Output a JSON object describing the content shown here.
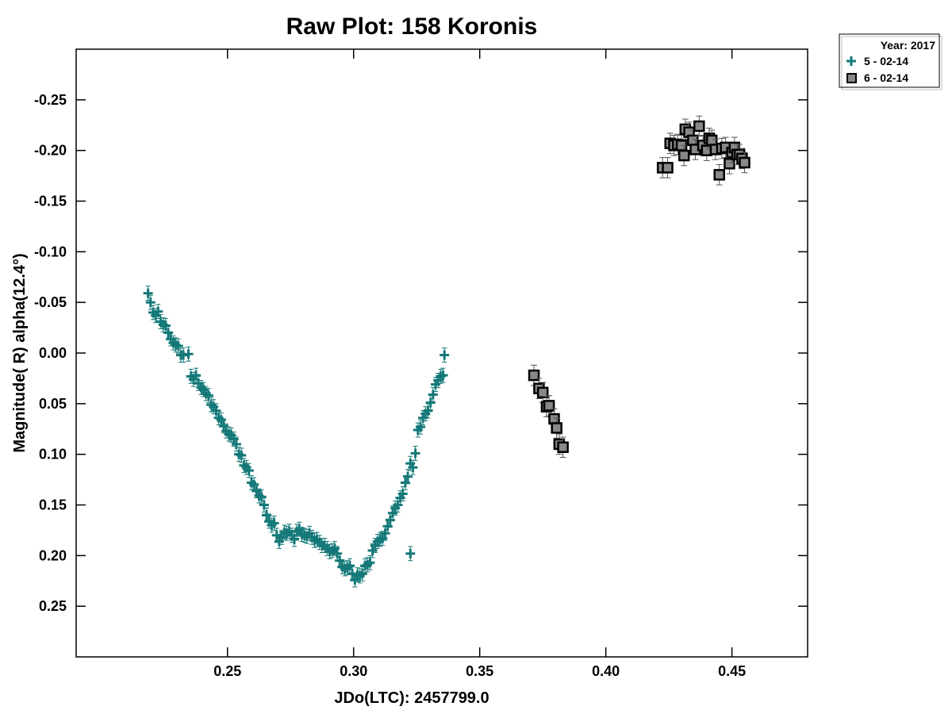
{
  "chart_data": {
    "type": "scatter",
    "title": "Raw Plot: 158 Koronis",
    "xlabel": "JDo(LTC): 2457799.0",
    "ylabel": "Magnitude( R) alpha(12.4°)",
    "xlim": [
      0.19,
      0.48
    ],
    "ylim": [
      0.3,
      -0.3
    ],
    "y_inverted": true,
    "grid": false,
    "legend_position": "top-right outside",
    "legend_title": "Year: 2017",
    "x_ticks": [
      {
        "value": 0.25,
        "label": "0.25"
      },
      {
        "value": 0.3,
        "label": "0.30"
      },
      {
        "value": 0.35,
        "label": "0.35"
      },
      {
        "value": 0.4,
        "label": "0.40"
      },
      {
        "value": 0.45,
        "label": "0.45"
      }
    ],
    "y_ticks": [
      {
        "value": -0.25,
        "label": "-0.25"
      },
      {
        "value": -0.2,
        "label": "-0.20"
      },
      {
        "value": -0.15,
        "label": "-0.15"
      },
      {
        "value": -0.1,
        "label": "-0.10"
      },
      {
        "value": -0.05,
        "label": "-0.05"
      },
      {
        "value": 0.0,
        "label": "0.00"
      },
      {
        "value": 0.05,
        "label": "0.05"
      },
      {
        "value": 0.1,
        "label": "0.10"
      },
      {
        "value": 0.15,
        "label": "0.15"
      },
      {
        "value": 0.2,
        "label": "0.20"
      },
      {
        "value": 0.25,
        "label": "0.25"
      }
    ],
    "series": [
      {
        "name": "5 - 02-14",
        "marker": "plus",
        "color": "#147878",
        "error": 0.007,
        "points": [
          [
            0.2185,
            -0.059
          ],
          [
            0.2195,
            -0.05
          ],
          [
            0.2205,
            -0.04
          ],
          [
            0.2215,
            -0.037
          ],
          [
            0.2225,
            -0.041
          ],
          [
            0.2235,
            -0.031
          ],
          [
            0.2245,
            -0.028
          ],
          [
            0.2255,
            -0.027
          ],
          [
            0.2265,
            -0.02
          ],
          [
            0.2275,
            -0.014
          ],
          [
            0.2285,
            -0.01
          ],
          [
            0.2295,
            -0.008
          ],
          [
            0.2305,
            -0.007
          ],
          [
            0.2315,
            0.002
          ],
          [
            0.2325,
            0.002
          ],
          [
            0.2345,
            0.001
          ],
          [
            0.2355,
            0.023
          ],
          [
            0.2365,
            0.026
          ],
          [
            0.2375,
            0.022
          ],
          [
            0.2385,
            0.03
          ],
          [
            0.2395,
            0.034
          ],
          [
            0.2405,
            0.036
          ],
          [
            0.2415,
            0.04
          ],
          [
            0.2425,
            0.042
          ],
          [
            0.2435,
            0.051
          ],
          [
            0.2445,
            0.053
          ],
          [
            0.2455,
            0.057
          ],
          [
            0.2465,
            0.064
          ],
          [
            0.2475,
            0.066
          ],
          [
            0.2485,
            0.072
          ],
          [
            0.2495,
            0.077
          ],
          [
            0.2505,
            0.08
          ],
          [
            0.2515,
            0.081
          ],
          [
            0.2525,
            0.085
          ],
          [
            0.2535,
            0.09
          ],
          [
            0.2545,
            0.1
          ],
          [
            0.2555,
            0.101
          ],
          [
            0.2565,
            0.111
          ],
          [
            0.2575,
            0.113
          ],
          [
            0.2585,
            0.116
          ],
          [
            0.2595,
            0.128
          ],
          [
            0.2605,
            0.13
          ],
          [
            0.2615,
            0.136
          ],
          [
            0.2625,
            0.141
          ],
          [
            0.2635,
            0.142
          ],
          [
            0.2645,
            0.15
          ],
          [
            0.2655,
            0.16
          ],
          [
            0.2665,
            0.166
          ],
          [
            0.2675,
            0.17
          ],
          [
            0.2685,
            0.168
          ],
          [
            0.2695,
            0.18
          ],
          [
            0.2705,
            0.186
          ],
          [
            0.2715,
            0.182
          ],
          [
            0.2725,
            0.177
          ],
          [
            0.2735,
            0.178
          ],
          [
            0.2745,
            0.176
          ],
          [
            0.2755,
            0.18
          ],
          [
            0.2765,
            0.184
          ],
          [
            0.2775,
            0.176
          ],
          [
            0.2785,
            0.174
          ],
          [
            0.2795,
            0.179
          ],
          [
            0.2805,
            0.18
          ],
          [
            0.2815,
            0.181
          ],
          [
            0.2825,
            0.178
          ],
          [
            0.2835,
            0.182
          ],
          [
            0.2845,
            0.185
          ],
          [
            0.2855,
            0.184
          ],
          [
            0.2865,
            0.187
          ],
          [
            0.2875,
            0.19
          ],
          [
            0.2885,
            0.19
          ],
          [
            0.2895,
            0.193
          ],
          [
            0.2905,
            0.196
          ],
          [
            0.2915,
            0.195
          ],
          [
            0.2925,
            0.193
          ],
          [
            0.2935,
            0.198
          ],
          [
            0.2945,
            0.205
          ],
          [
            0.2955,
            0.211
          ],
          [
            0.2965,
            0.213
          ],
          [
            0.2975,
            0.212
          ],
          [
            0.2985,
            0.21
          ],
          [
            0.2995,
            0.218
          ],
          [
            0.3005,
            0.224
          ],
          [
            0.3015,
            0.219
          ],
          [
            0.3025,
            0.22
          ],
          [
            0.3035,
            0.218
          ],
          [
            0.3045,
            0.21
          ],
          [
            0.3055,
            0.209
          ],
          [
            0.3065,
            0.207
          ],
          [
            0.3075,
            0.195
          ],
          [
            0.3085,
            0.19
          ],
          [
            0.3095,
            0.186
          ],
          [
            0.3105,
            0.184
          ],
          [
            0.3115,
            0.183
          ],
          [
            0.3125,
            0.178
          ],
          [
            0.3135,
            0.171
          ],
          [
            0.3145,
            0.165
          ],
          [
            0.3155,
            0.158
          ],
          [
            0.3165,
            0.153
          ],
          [
            0.3175,
            0.15
          ],
          [
            0.3185,
            0.143
          ],
          [
            0.3195,
            0.139
          ],
          [
            0.3205,
            0.128
          ],
          [
            0.3215,
            0.122
          ],
          [
            0.3225,
            0.109
          ],
          [
            0.3235,
            0.113
          ],
          [
            0.3245,
            0.099
          ],
          [
            0.3255,
            0.076
          ],
          [
            0.3265,
            0.073
          ],
          [
            0.3275,
            0.064
          ],
          [
            0.3285,
            0.06
          ],
          [
            0.3295,
            0.057
          ],
          [
            0.3305,
            0.049
          ],
          [
            0.3315,
            0.041
          ],
          [
            0.3325,
            0.031
          ],
          [
            0.3335,
            0.027
          ],
          [
            0.3345,
            0.023
          ],
          [
            0.3355,
            0.022
          ],
          [
            0.336,
            0.002
          ],
          [
            0.3225,
            0.198
          ],
          [
            0.2655,
            0.16
          ]
        ]
      },
      {
        "name": "6 - 02-14",
        "marker": "square",
        "color": "#888888",
        "error": 0.004,
        "points": [
          [
            0.3715,
            0.022
          ],
          [
            0.3735,
            0.035
          ],
          [
            0.375,
            0.039
          ],
          [
            0.3765,
            0.053
          ],
          [
            0.3775,
            0.052
          ],
          [
            0.3795,
            0.065
          ],
          [
            0.3805,
            0.074
          ],
          [
            0.3815,
            0.09
          ],
          [
            0.383,
            0.093
          ],
          [
            0.4225,
            -0.183
          ],
          [
            0.4245,
            -0.183
          ],
          [
            0.4255,
            -0.207
          ],
          [
            0.427,
            -0.205
          ],
          [
            0.4285,
            -0.206
          ],
          [
            0.43,
            -0.205
          ],
          [
            0.431,
            -0.195
          ],
          [
            0.4315,
            -0.221
          ],
          [
            0.433,
            -0.218
          ],
          [
            0.4345,
            -0.21
          ],
          [
            0.4355,
            -0.201
          ],
          [
            0.437,
            -0.224
          ],
          [
            0.4385,
            -0.205
          ],
          [
            0.44,
            -0.2
          ],
          [
            0.441,
            -0.212
          ],
          [
            0.442,
            -0.21
          ],
          [
            0.4435,
            -0.201
          ],
          [
            0.445,
            -0.176
          ],
          [
            0.446,
            -0.202
          ],
          [
            0.4475,
            -0.203
          ],
          [
            0.449,
            -0.187
          ],
          [
            0.45,
            -0.198
          ],
          [
            0.451,
            -0.203
          ],
          [
            0.452,
            -0.196
          ],
          [
            0.453,
            -0.196
          ],
          [
            0.454,
            -0.192
          ],
          [
            0.455,
            -0.188
          ]
        ]
      }
    ]
  },
  "colors": {
    "series1": "#147878",
    "series2_fill": "#888888",
    "axis": "#000000",
    "background": "#ffffff"
  }
}
